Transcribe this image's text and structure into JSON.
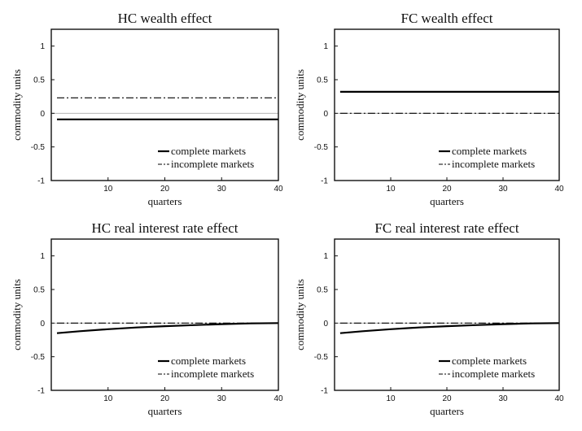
{
  "chart_data": [
    {
      "type": "line",
      "title": "HC wealth effect",
      "xlabel": "quarters",
      "ylabel": "commodity units",
      "xlim": [
        0,
        40
      ],
      "ylim": [
        -1,
        1.25
      ],
      "xticks": [
        10,
        20,
        30,
        40
      ],
      "yticks": [
        -1,
        -0.5,
        0,
        0.5,
        1
      ],
      "legend_position": "bottom-right",
      "series": [
        {
          "name": "complete markets",
          "style": "solid",
          "x": [
            1,
            40
          ],
          "y": [
            -0.09,
            -0.09
          ]
        },
        {
          "name": "incomplete markets",
          "style": "dashdot",
          "x": [
            1,
            40
          ],
          "y": [
            0.23,
            0.23
          ]
        }
      ]
    },
    {
      "type": "line",
      "title": "FC wealth effect",
      "xlabel": "quarters",
      "ylabel": "commodity units",
      "xlim": [
        0,
        40
      ],
      "ylim": [
        -1,
        1.25
      ],
      "xticks": [
        10,
        20,
        30,
        40
      ],
      "yticks": [
        -1,
        -0.5,
        0,
        0.5,
        1
      ],
      "legend_position": "bottom-right",
      "series": [
        {
          "name": "complete markets",
          "style": "solid",
          "x": [
            1,
            40
          ],
          "y": [
            0.32,
            0.32
          ]
        },
        {
          "name": "incomplete markets",
          "style": "dashdot",
          "x": [
            1,
            40
          ],
          "y": [
            0.0,
            0.0
          ]
        }
      ]
    },
    {
      "type": "line",
      "title": "HC real interest rate effect",
      "xlabel": "quarters",
      "ylabel": "commodity units",
      "xlim": [
        0,
        40
      ],
      "ylim": [
        -1,
        1.25
      ],
      "xticks": [
        10,
        20,
        30,
        40
      ],
      "yticks": [
        -1,
        -0.5,
        0,
        0.5,
        1
      ],
      "legend_position": "bottom-right",
      "series": [
        {
          "name": "complete markets",
          "style": "solid",
          "x": [
            1,
            5,
            10,
            15,
            20,
            25,
            30,
            35,
            40
          ],
          "y": [
            -0.15,
            -0.12,
            -0.09,
            -0.065,
            -0.045,
            -0.03,
            -0.015,
            -0.005,
            0.0
          ]
        },
        {
          "name": "incomplete markets",
          "style": "dashdot",
          "x": [
            1,
            40
          ],
          "y": [
            0.0,
            0.0
          ]
        }
      ]
    },
    {
      "type": "line",
      "title": "FC real interest rate effect",
      "xlabel": "quarters",
      "ylabel": "commodity units",
      "xlim": [
        0,
        40
      ],
      "ylim": [
        -1,
        1.25
      ],
      "xticks": [
        10,
        20,
        30,
        40
      ],
      "yticks": [
        -1,
        -0.5,
        0,
        0.5,
        1
      ],
      "legend_position": "bottom-right",
      "series": [
        {
          "name": "complete markets",
          "style": "solid",
          "x": [
            1,
            5,
            10,
            15,
            20,
            25,
            30,
            35,
            40
          ],
          "y": [
            -0.15,
            -0.12,
            -0.09,
            -0.065,
            -0.045,
            -0.03,
            -0.015,
            -0.005,
            0.0
          ]
        },
        {
          "name": "incomplete markets",
          "style": "dashdot",
          "x": [
            1,
            40
          ],
          "y": [
            0.0,
            0.0
          ]
        }
      ]
    }
  ]
}
